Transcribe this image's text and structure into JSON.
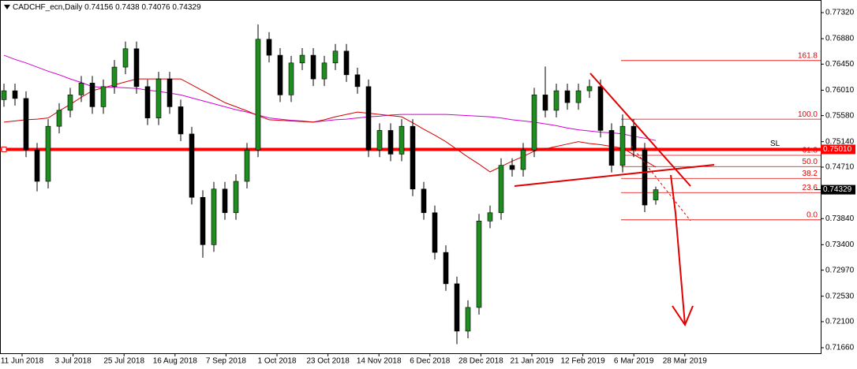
{
  "header": {
    "symbol": "CADCHF_ecn,Daily",
    "ohlc": [
      0.74156,
      0.7438,
      0.74076,
      0.74329
    ]
  },
  "chart_data": {
    "type": "candlestick",
    "ylim": [
      0.7166,
      0.7732
    ],
    "yticks": [
      {
        "value": 0.7732,
        "label": "0.77320"
      },
      {
        "value": 0.7688,
        "label": "0.76880"
      },
      {
        "value": 0.7645,
        "label": "0.76450"
      },
      {
        "value": 0.7601,
        "label": "0.76010"
      },
      {
        "value": 0.7558,
        "label": "0.75580"
      },
      {
        "value": 0.7514,
        "label": "0.75140"
      },
      {
        "value": 0.7471,
        "label": "0.74710"
      },
      {
        "value": 0.7384,
        "label": "0.73840"
      },
      {
        "value": 0.734,
        "label": "0.73400"
      },
      {
        "value": 0.7297,
        "label": "0.72970"
      },
      {
        "value": 0.7253,
        "label": "0.72530"
      },
      {
        "value": 0.721,
        "label": "0.72100"
      },
      {
        "value": 0.7166,
        "label": "0.71660"
      }
    ],
    "xtick_labels": [
      "11 Jun 2018",
      "3 Jul 2018",
      "25 Jul 2018",
      "16 Aug 2018",
      "7 Sep 2018",
      "1 Oct 2018",
      "23 Oct 2018",
      "14 Nov 2018",
      "6 Dec 2018",
      "28 Dec 2018",
      "21 Jan 2019",
      "12 Feb 2019",
      "6 Mar 2019",
      "28 Mar 2019"
    ],
    "bull_color": "#1e8c1e",
    "bear_color": "#000000",
    "open": [
      0.7585,
      0.76,
      0.7587,
      0.75,
      0.7447,
      0.754,
      0.7567,
      0.7593,
      0.7613,
      0.7573,
      0.7607,
      0.764,
      0.7671,
      0.7607,
      0.7554,
      0.762,
      0.7573,
      0.7527,
      0.742,
      0.734,
      0.7434,
      0.7394,
      0.7447,
      0.75,
      0.7687,
      0.766,
      0.7593,
      0.7647,
      0.766,
      0.762,
      0.7647,
      0.7667,
      0.7627,
      0.7607,
      0.75,
      0.7533,
      0.7493,
      0.754,
      0.7434,
      0.7394,
      0.7327,
      0.7274,
      0.7194,
      0.7234,
      0.738,
      0.7394,
      0.7474,
      0.7467,
      0.75,
      0.7593,
      0.7567,
      0.76,
      0.758,
      0.76,
      0.7607,
      0.7533,
      0.7474,
      0.754,
      0.75,
      0.74156
    ],
    "high": [
      0.7612,
      0.7612,
      0.7599,
      0.7512,
      0.7552,
      0.7579,
      0.7605,
      0.7625,
      0.7625,
      0.7619,
      0.7652,
      0.7683,
      0.7683,
      0.7619,
      0.7632,
      0.7632,
      0.7585,
      0.7539,
      0.7432,
      0.7446,
      0.7446,
      0.7459,
      0.7512,
      0.7712,
      0.7699,
      0.7672,
      0.7659,
      0.7672,
      0.7672,
      0.7659,
      0.7679,
      0.7679,
      0.7639,
      0.7619,
      0.7545,
      0.7545,
      0.7552,
      0.7552,
      0.7446,
      0.7406,
      0.7339,
      0.7286,
      0.7246,
      0.7392,
      0.7406,
      0.7486,
      0.7486,
      0.7512,
      0.7605,
      0.7641,
      0.7612,
      0.7612,
      0.7612,
      0.7619,
      0.7619,
      0.7545,
      0.756,
      0.7552,
      0.7512,
      0.7438
    ],
    "low": [
      0.7573,
      0.7575,
      0.7488,
      0.743,
      0.7435,
      0.7528,
      0.7555,
      0.7581,
      0.7561,
      0.7561,
      0.7595,
      0.7628,
      0.7595,
      0.7542,
      0.7542,
      0.7561,
      0.7515,
      0.7408,
      0.7318,
      0.7328,
      0.7382,
      0.7382,
      0.7435,
      0.7488,
      0.7648,
      0.7581,
      0.7581,
      0.7635,
      0.7608,
      0.7608,
      0.7635,
      0.7615,
      0.7595,
      0.7488,
      0.7488,
      0.7481,
      0.7481,
      0.7422,
      0.7382,
      0.7315,
      0.7262,
      0.7172,
      0.7182,
      0.7222,
      0.7368,
      0.7382,
      0.7455,
      0.7455,
      0.7488,
      0.7555,
      0.7555,
      0.7568,
      0.7568,
      0.7588,
      0.7521,
      0.7462,
      0.7462,
      0.7488,
      0.7395,
      0.74076
    ],
    "close": [
      0.76,
      0.7587,
      0.75,
      0.7447,
      0.754,
      0.7567,
      0.7593,
      0.7613,
      0.7573,
      0.7607,
      0.764,
      0.7671,
      0.7607,
      0.7554,
      0.762,
      0.7573,
      0.7527,
      0.742,
      0.734,
      0.7434,
      0.7394,
      0.7447,
      0.75,
      0.7687,
      0.766,
      0.7593,
      0.7647,
      0.766,
      0.762,
      0.7647,
      0.7667,
      0.7627,
      0.7607,
      0.75,
      0.7533,
      0.7493,
      0.754,
      0.7434,
      0.7394,
      0.7327,
      0.7274,
      0.7194,
      0.7234,
      0.738,
      0.7394,
      0.7474,
      0.7467,
      0.75,
      0.7593,
      0.7567,
      0.76,
      0.758,
      0.76,
      0.7607,
      0.7533,
      0.7474,
      0.754,
      0.75,
      0.7407,
      0.74329
    ],
    "moving_averages": [
      {
        "color": "#d400d4",
        "values": [
          0.766,
          0.7653,
          0.7647,
          0.764,
          0.7633,
          0.7627,
          0.762,
          0.7614,
          0.7607,
          0.7606,
          0.7606,
          0.7605,
          0.7604,
          0.7601,
          0.7599,
          0.7596,
          0.7593,
          0.7588,
          0.7583,
          0.7578,
          0.7573,
          0.7568,
          0.7564,
          0.7559,
          0.7554,
          0.7552,
          0.755,
          0.7549,
          0.7547,
          0.7549,
          0.7551,
          0.7552,
          0.7554,
          0.7556,
          0.7557,
          0.7559,
          0.756,
          0.756,
          0.756,
          0.756,
          0.756,
          0.7559,
          0.7558,
          0.7557,
          0.7556,
          0.7554,
          0.7551,
          0.7549,
          0.7547,
          0.7544,
          0.7541,
          0.7537,
          0.7534,
          0.7532,
          0.753,
          0.7529,
          0.7527,
          0.7523,
          0.752,
          0.7516
        ]
      },
      {
        "color": "#d40000",
        "values": [
          0.7547,
          0.7549,
          0.7551,
          0.7552,
          0.7554,
          0.7566,
          0.7577,
          0.7589,
          0.76,
          0.7605,
          0.761,
          0.7615,
          0.762,
          0.762,
          0.762,
          0.762,
          0.762,
          0.761,
          0.76,
          0.759,
          0.758,
          0.7573,
          0.7566,
          0.7558,
          0.7551,
          0.755,
          0.7549,
          0.7548,
          0.7547,
          0.7551,
          0.7556,
          0.756,
          0.7564,
          0.7562,
          0.756,
          0.7558,
          0.7556,
          0.7546,
          0.7535,
          0.7525,
          0.7514,
          0.7501,
          0.7488,
          0.7476,
          0.7463,
          0.7472,
          0.7481,
          0.7489,
          0.7498,
          0.7502,
          0.7506,
          0.751,
          0.7514,
          0.7511,
          0.7509,
          0.7506,
          0.7503,
          0.7492,
          0.7482,
          0.7471
        ]
      }
    ],
    "fib_levels": [
      {
        "label": "161.8",
        "price": 0.7651
      },
      {
        "label": "100.0",
        "price": 0.7552
      },
      {
        "label": "61.8",
        "price": 0.7491
      },
      {
        "label": "50.0",
        "price": 0.7472
      },
      {
        "label": "38.2",
        "price": 0.7452
      },
      {
        "label": "23.6",
        "price": 0.7428
      },
      {
        "label": "0.0",
        "price": 0.7382
      }
    ],
    "stop_loss": {
      "text": "SL",
      "value": 0.7501,
      "label": "0.75010"
    },
    "last_price": 0.74329
  }
}
